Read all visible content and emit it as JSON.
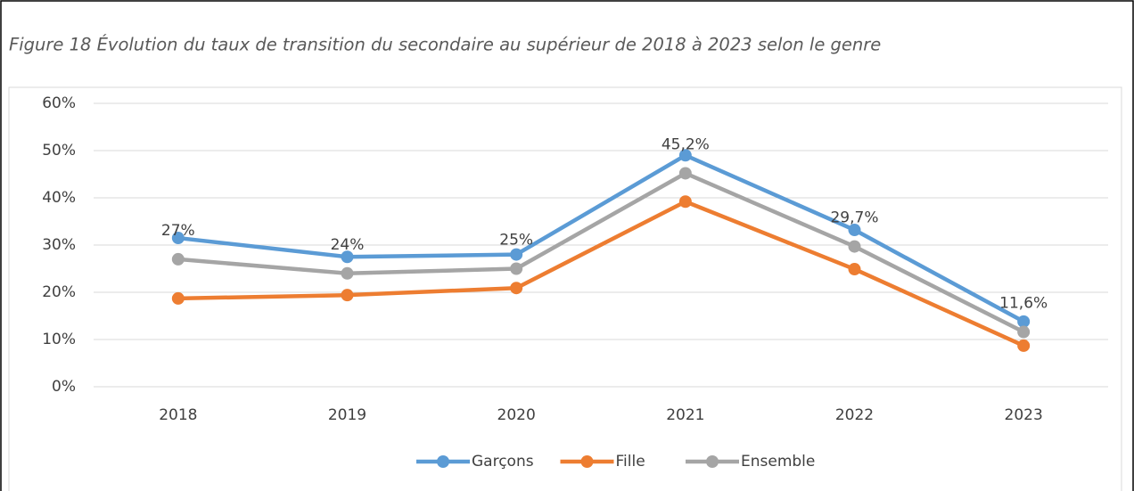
{
  "chart_data": {
    "type": "line",
    "title": "Figure 18 Évolution du taux de transition du secondaire au supérieur de 2018 à 2023 selon le genre",
    "categories": [
      "2018",
      "2019",
      "2020",
      "2021",
      "2022",
      "2023"
    ],
    "series": [
      {
        "name": "Garçons",
        "color": "#5b9bd5",
        "values": [
          31.5,
          27.5,
          28,
          49,
          33.2,
          13.8
        ]
      },
      {
        "name": "Fille",
        "color": "#ed7d31",
        "values": [
          18.7,
          19.4,
          20.9,
          39.2,
          24.9,
          8.7
        ]
      },
      {
        "name": "Ensemble",
        "color": "#a5a5a5",
        "values": [
          27,
          24,
          25,
          45.2,
          29.7,
          11.6
        ],
        "value_labels": [
          "27%",
          "24%",
          "25%",
          "45,2%",
          "29,7%",
          "11,6%"
        ]
      }
    ],
    "ylim": [
      0,
      60
    ],
    "yticks": [
      {
        "value": 0,
        "label": "0%"
      },
      {
        "value": 10,
        "label": "10%"
      },
      {
        "value": 20,
        "label": "20%"
      },
      {
        "value": 30,
        "label": "30%"
      },
      {
        "value": 40,
        "label": "40%"
      },
      {
        "value": 50,
        "label": "50%"
      },
      {
        "value": 60,
        "label": "60%"
      }
    ],
    "grid": true,
    "legend": "bottom"
  }
}
